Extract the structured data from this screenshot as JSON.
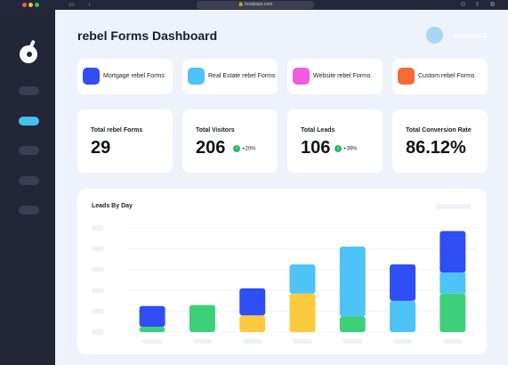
{
  "browser": {
    "url": "leadpops.com"
  },
  "header": {
    "title": "rebel Forms Dashboard"
  },
  "form_types": [
    {
      "label": "Mortgage rebel Forms",
      "color": "#2f4ef3"
    },
    {
      "label": "Real Estate rebel Forms",
      "color": "#4ec3f5"
    },
    {
      "label": "Website rebel Forms",
      "color": "#ef5ce0"
    },
    {
      "label": "Custom rebel Forms",
      "color": "#f56a35"
    }
  ],
  "stats": [
    {
      "label": "Total rebel Forms",
      "value": "29"
    },
    {
      "label": "Total Visitors",
      "value": "206",
      "delta": "+20%"
    },
    {
      "label": "Total Leads",
      "value": "106",
      "delta": "+36%"
    },
    {
      "label": "Total Conversion Rate",
      "value": "86.12%"
    }
  ],
  "chart": {
    "title": "Leads By Day"
  },
  "chart_data": {
    "type": "bar",
    "stacked": true,
    "title": "Leads By Day",
    "categories": [
      "",
      "",
      "",
      "",
      "",
      "",
      ""
    ],
    "ylim": [
      0,
      100
    ],
    "grid": true,
    "series": [
      {
        "color": "#3dd07a",
        "values": [
          5,
          26,
          0,
          0,
          15,
          0,
          37
        ]
      },
      {
        "color": "#fbc93d",
        "values": [
          0,
          0,
          16,
          37,
          0,
          0,
          0
        ]
      },
      {
        "color": "#4ec3f5",
        "values": [
          0,
          0,
          0,
          28,
          67,
          30,
          20
        ]
      },
      {
        "color": "#2f4ef3",
        "values": [
          20,
          0,
          26,
          0,
          0,
          35,
          40
        ]
      }
    ]
  }
}
